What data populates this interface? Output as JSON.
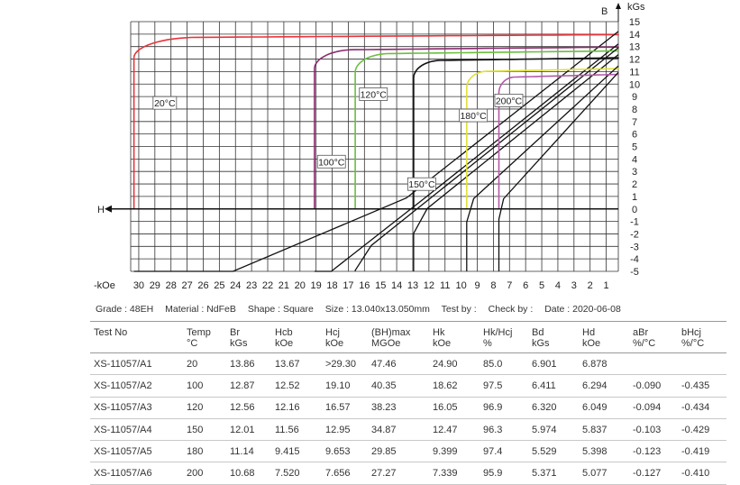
{
  "chart_data": {
    "type": "line",
    "x_unit": "-kOe",
    "y_unit": "kGs",
    "y_axis_label": "B",
    "x_axis_label": "H",
    "x_ticks": [
      30,
      29,
      28,
      27,
      26,
      25,
      24,
      23,
      22,
      21,
      20,
      19,
      18,
      17,
      16,
      15,
      14,
      13,
      12,
      11,
      10,
      9,
      8,
      7,
      6,
      5,
      4,
      3,
      2,
      1
    ],
    "y_ticks": [
      15,
      14,
      13,
      12,
      11,
      10,
      9,
      8,
      7,
      6,
      5,
      4,
      3,
      2,
      1,
      0,
      -1,
      -2,
      -3,
      -4,
      -5
    ],
    "xlim": [
      30.5,
      0.25
    ],
    "ylim": [
      -5,
      15
    ],
    "grid": true,
    "series": [
      {
        "name": "20°C",
        "color": "#e8333a",
        "Br": 13.86,
        "Hcb": 13.67,
        "Hcj": 30.3,
        "Hk": 24.9,
        "label_at": [
          29,
          8.2
        ]
      },
      {
        "name": "100°C",
        "color": "#8b2a6e",
        "Br": 12.87,
        "Hcb": 12.52,
        "Hcj": 19.1,
        "Hk": 18.62,
        "label_at": [
          18.8,
          3.5
        ]
      },
      {
        "name": "120°C",
        "color": "#6abf3d",
        "Br": 12.56,
        "Hcb": 12.16,
        "Hcj": 16.57,
        "Hk": 16.05,
        "label_at": [
          16.2,
          8.9
        ]
      },
      {
        "name": "150°C",
        "color": "#111111",
        "Br": 12.01,
        "Hcb": 11.56,
        "Hcj": 12.95,
        "Hk": 12.47,
        "label_at": [
          13.2,
          1.7
        ]
      },
      {
        "name": "180°C",
        "color": "#e0e03a",
        "Br": 11.14,
        "Hcb": 9.415,
        "Hcj": 9.653,
        "Hk": 9.399,
        "label_at": [
          10.0,
          7.2
        ]
      },
      {
        "name": "200°C",
        "color": "#b35aa8",
        "Br": 10.68,
        "Hcb": 7.52,
        "Hcj": 7.656,
        "Hk": 7.339,
        "label_at": [
          7.8,
          8.4
        ]
      }
    ]
  },
  "info": {
    "grade": "Grade :  48EH",
    "material": "Material :  NdFeB",
    "shape": "Shape :  Square",
    "size": "Size :  13.040x13.050mm",
    "testby": "Test by :",
    "checkby": "Check by :",
    "date": "Date :  2020-06-08"
  },
  "table": {
    "headers": [
      [
        "Test No",
        ""
      ],
      [
        "Temp",
        "°C"
      ],
      [
        "Br",
        "kGs"
      ],
      [
        "Hcb",
        "kOe"
      ],
      [
        "Hcj",
        "kOe"
      ],
      [
        "(BH)max",
        "MGOe"
      ],
      [
        "Hk",
        "kOe"
      ],
      [
        "Hk/Hcj",
        "%"
      ],
      [
        "Bd",
        "kGs"
      ],
      [
        "Hd",
        "kOe"
      ],
      [
        "aBr",
        "%/°C"
      ],
      [
        "bHcj",
        "%/°C"
      ]
    ],
    "rows": [
      [
        "XS-11057/A1",
        "20",
        "13.86",
        "13.67",
        ">29.30",
        "47.46",
        "24.90",
        "85.0",
        "6.901",
        "6.878",
        "",
        ""
      ],
      [
        "XS-11057/A2",
        "100",
        "12.87",
        "12.52",
        "19.10",
        "40.35",
        "18.62",
        "97.5",
        "6.411",
        "6.294",
        "-0.090",
        "-0.435"
      ],
      [
        "XS-11057/A3",
        "120",
        "12.56",
        "12.16",
        "16.57",
        "38.23",
        "16.05",
        "96.9",
        "6.320",
        "6.049",
        "-0.094",
        "-0.434"
      ],
      [
        "XS-11057/A4",
        "150",
        "12.01",
        "11.56",
        "12.95",
        "34.87",
        "12.47",
        "96.3",
        "5.974",
        "5.837",
        "-0.103",
        "-0.429"
      ],
      [
        "XS-11057/A5",
        "180",
        "11.14",
        "9.415",
        "9.653",
        "29.85",
        "9.399",
        "97.4",
        "5.529",
        "5.398",
        "-0.123",
        "-0.419"
      ],
      [
        "XS-11057/A6",
        "200",
        "10.68",
        "7.520",
        "7.656",
        "27.27",
        "7.339",
        "95.9",
        "5.371",
        "5.077",
        "-0.127",
        "-0.410"
      ]
    ]
  }
}
